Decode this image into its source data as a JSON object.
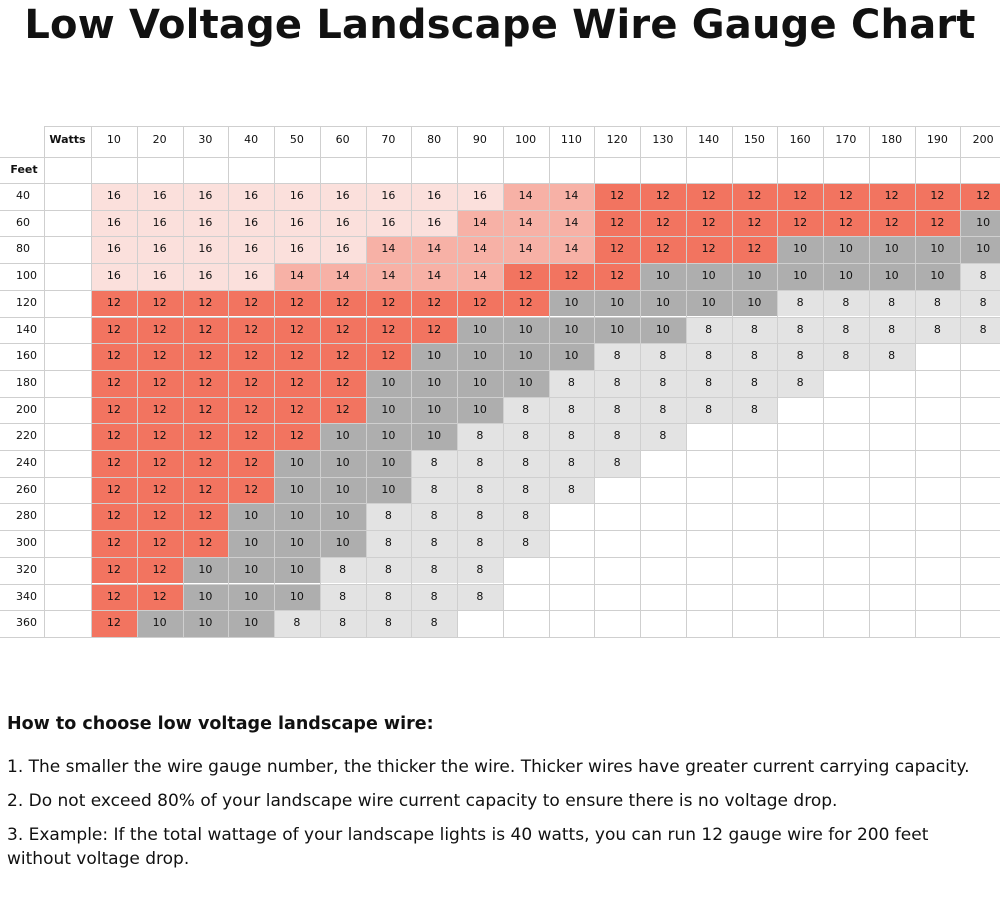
{
  "title": "Low Voltage Landscape Wire Gauge Chart",
  "chart_data": {
    "type": "table",
    "col_header_label": "Watts",
    "row_header_label": "Feet",
    "watts": [
      "10",
      "20",
      "30",
      "40",
      "50",
      "60",
      "70",
      "80",
      "90",
      "100",
      "110",
      "120",
      "130",
      "140",
      "150",
      "160",
      "170",
      "180",
      "190",
      "200"
    ],
    "feet": [
      "40",
      "60",
      "80",
      "100",
      "120",
      "140",
      "160",
      "180",
      "200",
      "220",
      "240",
      "260",
      "280",
      "300",
      "320",
      "340",
      "360"
    ],
    "gauge": [
      [
        "16",
        "16",
        "16",
        "16",
        "16",
        "16",
        "16",
        "16",
        "16",
        "14",
        "14",
        "12",
        "12",
        "12",
        "12",
        "12",
        "12",
        "12",
        "12",
        "12"
      ],
      [
        "16",
        "16",
        "16",
        "16",
        "16",
        "16",
        "16",
        "16",
        "14",
        "14",
        "14",
        "12",
        "12",
        "12",
        "12",
        "12",
        "12",
        "12",
        "12",
        "10"
      ],
      [
        "16",
        "16",
        "16",
        "16",
        "16",
        "16",
        "14",
        "14",
        "14",
        "14",
        "14",
        "12",
        "12",
        "12",
        "12",
        "10",
        "10",
        "10",
        "10",
        "10"
      ],
      [
        "16",
        "16",
        "16",
        "16",
        "14",
        "14",
        "14",
        "14",
        "14",
        "12",
        "12",
        "12",
        "10",
        "10",
        "10",
        "10",
        "10",
        "10",
        "10",
        "8"
      ],
      [
        "12",
        "12",
        "12",
        "12",
        "12",
        "12",
        "12",
        "12",
        "12",
        "12",
        "10",
        "10",
        "10",
        "10",
        "10",
        "8",
        "8",
        "8",
        "8",
        "8"
      ],
      [
        "12",
        "12",
        "12",
        "12",
        "12",
        "12",
        "12",
        "12",
        "10",
        "10",
        "10",
        "10",
        "10",
        "8",
        "8",
        "8",
        "8",
        "8",
        "8",
        "8"
      ],
      [
        "12",
        "12",
        "12",
        "12",
        "12",
        "12",
        "12",
        "10",
        "10",
        "10",
        "10",
        "8",
        "8",
        "8",
        "8",
        "8",
        "8",
        "8",
        "",
        ""
      ],
      [
        "12",
        "12",
        "12",
        "12",
        "12",
        "12",
        "10",
        "10",
        "10",
        "10",
        "8",
        "8",
        "8",
        "8",
        "8",
        "8",
        "",
        "",
        "",
        ""
      ],
      [
        "12",
        "12",
        "12",
        "12",
        "12",
        "12",
        "10",
        "10",
        "10",
        "8",
        "8",
        "8",
        "8",
        "8",
        "8",
        "",
        "",
        "",
        "",
        ""
      ],
      [
        "12",
        "12",
        "12",
        "12",
        "12",
        "10",
        "10",
        "10",
        "8",
        "8",
        "8",
        "8",
        "8",
        "",
        "",
        "",
        "",
        "",
        "",
        ""
      ],
      [
        "12",
        "12",
        "12",
        "12",
        "10",
        "10",
        "10",
        "8",
        "8",
        "8",
        "8",
        "8",
        "",
        "",
        "",
        "",
        "",
        "",
        "",
        ""
      ],
      [
        "12",
        "12",
        "12",
        "12",
        "10",
        "10",
        "10",
        "8",
        "8",
        "8",
        "8",
        "",
        "",
        "",
        "",
        "",
        "",
        "",
        "",
        ""
      ],
      [
        "12",
        "12",
        "12",
        "10",
        "10",
        "10",
        "8",
        "8",
        "8",
        "8",
        "",
        "",
        "",
        "",
        "",
        "",
        "",
        "",
        "",
        ""
      ],
      [
        "12",
        "12",
        "12",
        "10",
        "10",
        "10",
        "8",
        "8",
        "8",
        "8",
        "",
        "",
        "",
        "",
        "",
        "",
        "",
        "",
        "",
        ""
      ],
      [
        "12",
        "12",
        "10",
        "10",
        "10",
        "8",
        "8",
        "8",
        "8",
        "",
        "",
        "",
        "",
        "",
        "",
        "",
        "",
        "",
        "",
        ""
      ],
      [
        "12",
        "12",
        "10",
        "10",
        "10",
        "8",
        "8",
        "8",
        "8",
        "",
        "",
        "",
        "",
        "",
        "",
        "",
        "",
        "",
        "",
        ""
      ],
      [
        "12",
        "10",
        "10",
        "10",
        "8",
        "8",
        "8",
        "8",
        "",
        "",
        "",
        "",
        "",
        "",
        "",
        "",
        "",
        "",
        "",
        ""
      ]
    ],
    "colors": {
      "16": "#fbe0dc",
      "14": "#f7b1a6",
      "12": "#f27460",
      "10": "#aeaeae",
      "8": "#e3e3e3",
      "empty": "#ffffff",
      "grid": "#cfcfcf"
    }
  },
  "notes": {
    "heading": "How to choose low voltage landscape wire:",
    "items": [
      "1. The smaller the wire gauge number, the thicker the wire. Thicker wires have greater current carrying capacity.",
      "2. Do not exceed 80% of your landscape wire current capacity to ensure there is no voltage drop.",
      "3. Example: If the total wattage of your landscape lights is 40 watts, you can run 12 gauge wire for 200 feet without voltage drop."
    ]
  }
}
